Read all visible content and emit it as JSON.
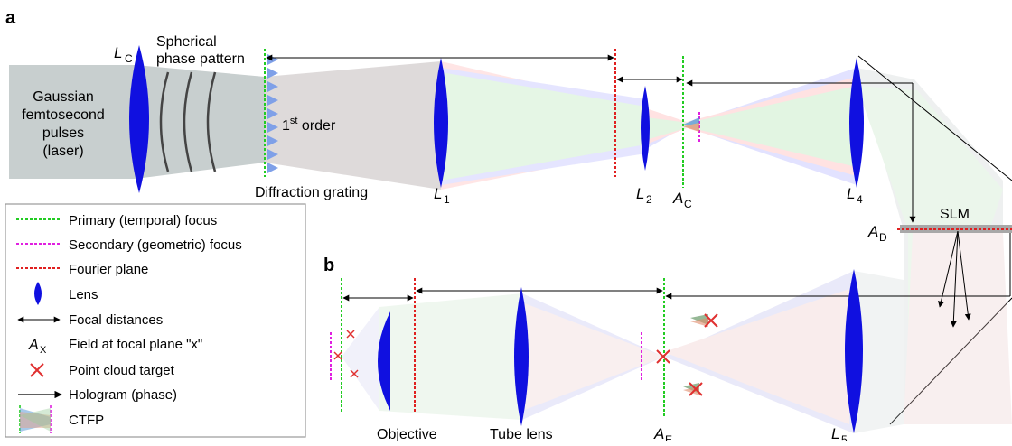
{
  "panels": {
    "a": "a",
    "b": "b"
  },
  "labels": {
    "lc": "L",
    "lc_sub": "C",
    "spherical_1": "Spherical",
    "spherical_2": "phase pattern",
    "gauss_1": "Gaussian",
    "gauss_2": "femtosecond",
    "gauss_3": "pulses",
    "gauss_4": "(laser)",
    "first_order_num": "1",
    "first_order_sup": "st",
    "first_order_txt": " order",
    "grating": "Diffraction grating",
    "l1": "L",
    "l1_sub": "1",
    "l2": "L",
    "l2_sub": "2",
    "ac": "A",
    "ac_sub": "C",
    "l4": "L",
    "l4_sub": "4",
    "slm": "SLM",
    "ad": "A",
    "ad_sub": "D",
    "objective": "Objective",
    "tube_lens": "Tube lens",
    "ae": "A",
    "ae_sub": "E",
    "l5": "L",
    "l5_sub": "5"
  },
  "legend": {
    "primary": "Primary (temporal) focus",
    "secondary": "Secondary (geometric) focus",
    "fourier": "Fourier plane",
    "lens": "Lens",
    "focal": "Focal distances",
    "field_a": "A",
    "field_sub": "X",
    "field": "Field at focal plane \"x\"",
    "target": "Point cloud target",
    "hologram": "Hologram (phase)",
    "ctfp": "CTFP"
  },
  "colors": {
    "primary": "#22cc22",
    "secondary": "#e020e0",
    "fourier": "#e02020",
    "lens": "#1010e0",
    "target": "#e03030",
    "beam": "#c8cfcf"
  }
}
